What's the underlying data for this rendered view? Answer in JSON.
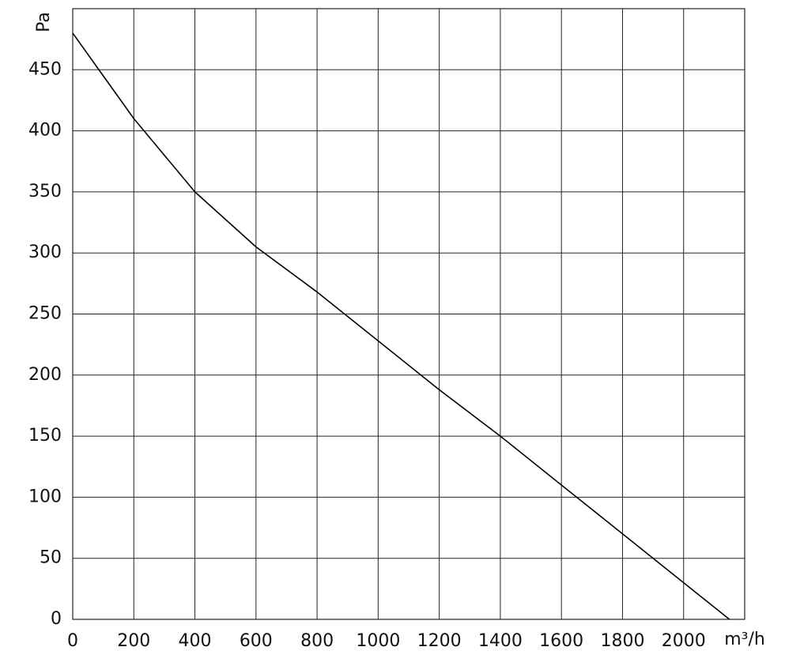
{
  "chart_data": {
    "type": "line",
    "x_label": "m³/h",
    "y_label": "Pa",
    "x": [
      0,
      200,
      400,
      600,
      800,
      1000,
      1200,
      1400,
      1600,
      1800,
      2000,
      2150
    ],
    "series": [
      {
        "color": "#000000",
        "values": [
          480,
          410,
          350,
          305,
          268,
          228,
          188,
          150,
          110,
          70,
          30,
          0
        ]
      }
    ],
    "xlim": [
      0,
      2200
    ],
    "xticks": [
      0,
      200,
      400,
      600,
      800,
      1000,
      1200,
      1400,
      1600,
      1800,
      2000
    ],
    "ylim": [
      0,
      500
    ],
    "yticks": [
      0,
      50,
      100,
      150,
      200,
      250,
      300,
      350,
      400,
      450
    ],
    "grid": true
  }
}
